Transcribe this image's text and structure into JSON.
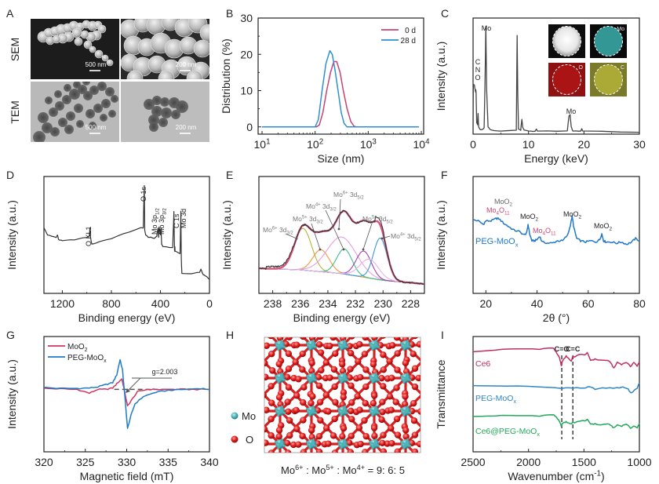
{
  "figure": {
    "panel_letters": [
      "A",
      "B",
      "C",
      "D",
      "E",
      "F",
      "G",
      "H",
      "I"
    ]
  },
  "panelA": {
    "row_labels": [
      "SEM",
      "TEM"
    ],
    "images": [
      {
        "row": "SEM",
        "scale_bar": "500 nm"
      },
      {
        "row": "SEM",
        "scale_bar": "200 nm"
      },
      {
        "row": "TEM",
        "scale_bar": "500 nm"
      },
      {
        "row": "TEM",
        "scale_bar": "200 nm"
      }
    ]
  },
  "panelH": {
    "legend": [
      {
        "label": "Mo",
        "color": "#4fb3b8"
      },
      {
        "label": "O",
        "color": "#e01b1b"
      }
    ],
    "caption": {
      "mo6": "Mo",
      "sup6": "6+",
      "mo5": " : Mo",
      "sup5": "5+",
      "mo4": " : Mo",
      "sup4": "4+",
      "ratio": " = 9: 6: 5"
    }
  },
  "chart_data": [
    {
      "id": "B",
      "type": "line",
      "title": "",
      "xlabel": "Size (nm)",
      "ylabel": "Distribution (%)",
      "xscale": "log",
      "xlim": [
        10,
        10000
      ],
      "ylim": [
        -2,
        30
      ],
      "xticks": [
        10,
        100,
        1000,
        10000
      ],
      "xtick_labels": [
        [
          "10",
          "1"
        ],
        [
          "10",
          "2"
        ],
        [
          "10",
          "3"
        ],
        [
          "10",
          "4"
        ]
      ],
      "yticks": [
        0,
        10,
        20,
        30
      ],
      "legend": "top-right",
      "series": [
        {
          "name": "0 d",
          "color": "#c8436f",
          "x": [
            10,
            105,
            120,
            140,
            165,
            195,
            225,
            255,
            295,
            340,
            400,
            470,
            540,
            600,
            9000
          ],
          "y": [
            0,
            0,
            0.5,
            4,
            10,
            15,
            18,
            18,
            15,
            10,
            5,
            1.5,
            0.2,
            0,
            0
          ]
        },
        {
          "name": "28 d",
          "color": "#2f8fd0",
          "x": [
            10,
            100,
            115,
            135,
            160,
            190,
            210,
            235,
            270,
            310,
            350,
            400,
            9000
          ],
          "y": [
            0,
            0,
            2,
            10,
            17.5,
            21,
            20,
            16,
            10,
            4,
            1,
            0,
            0
          ]
        }
      ]
    },
    {
      "id": "C",
      "type": "line",
      "title": "",
      "xlabel": "Energy (keV)",
      "ylabel": "Intensity (a.u.)",
      "xlim": [
        0,
        30
      ],
      "ylim": [
        0,
        100
      ],
      "xticks": [
        0,
        10,
        20,
        30
      ],
      "series": [
        {
          "name": "EDS",
          "color": "#444444",
          "x": [
            0,
            0.05,
            0.25,
            0.3,
            0.45,
            0.5,
            0.55,
            0.65,
            0.8,
            0.9,
            1.0,
            1.2,
            1.5,
            2.0,
            2.2,
            2.3,
            2.45,
            2.7,
            3.2,
            5,
            7.8,
            7.95,
            8.05,
            8.2,
            8.6,
            8.8,
            8.95,
            9.2,
            10,
            11.2,
            11.4,
            11.6,
            17,
            17.3,
            17.5,
            17.7,
            18,
            19.4,
            19.6,
            19.8,
            30
          ],
          "y": [
            0,
            45,
            44,
            42,
            38,
            40,
            36,
            10,
            8,
            18,
            6,
            4,
            3,
            5,
            60,
            98,
            40,
            6,
            3,
            2,
            3,
            90,
            40,
            4,
            3,
            13,
            6,
            3,
            2,
            2,
            4,
            2,
            2,
            16,
            17,
            6,
            2,
            2,
            4,
            2,
            1
          ]
        }
      ],
      "annotations": [
        {
          "text": "Mo",
          "x": 2.3
        },
        {
          "text": "C\nN\nO",
          "x": 0.4
        },
        {
          "text": "Mo",
          "x": 17.4
        }
      ],
      "inset_maps": [
        "HAADF",
        "Mo",
        "O",
        "C"
      ],
      "inset_colors": [
        "#f2f2f2",
        "#3ab0ae",
        "#b01515",
        "#b5b33a"
      ]
    },
    {
      "id": "D",
      "type": "line",
      "title": "",
      "xlabel": "Binding energy (eV)",
      "ylabel": "Intensity (a.u.)",
      "xlim": [
        1350,
        0
      ],
      "ylim": [
        0,
        100
      ],
      "xticks": [
        1200,
        800,
        400,
        0
      ],
      "series": [
        {
          "name": "XPS survey",
          "color": "#333333",
          "x": [
            1350,
            1320,
            1290,
            1250,
            1240,
            1230,
            1200,
            1100,
            1000,
            980,
            975,
            970,
            960,
            900,
            800,
            700,
            560,
            540,
            532,
            528,
            520,
            500,
            480,
            450,
            430,
            420,
            415,
            410,
            400,
            395,
            390,
            380,
            300,
            290,
            285,
            282,
            280,
            240,
            233,
            230,
            228,
            225,
            220,
            150,
            80,
            70,
            60,
            50,
            30,
            10,
            0
          ],
          "y": [
            56,
            50,
            49,
            48,
            50,
            46,
            45,
            46,
            48,
            49,
            56,
            48,
            42,
            44,
            47,
            51,
            56,
            56,
            92,
            54,
            50,
            48,
            48,
            47,
            49,
            56,
            48,
            57,
            50,
            56,
            42,
            40,
            39,
            70,
            36,
            40,
            36,
            34,
            70,
            30,
            24,
            17,
            17,
            17,
            18,
            21,
            18,
            16,
            15,
            13,
            12
          ]
        }
      ],
      "annotations": [
        {
          "text": "O KL1",
          "x": 975
        },
        {
          "text": "O 1s",
          "x": 531
        },
        {
          "text": "Mo 3p1/2",
          "x": 412
        },
        {
          "text": "Mo 3p3/2",
          "x": 396
        },
        {
          "text": "C 1s",
          "x": 285
        },
        {
          "text": "Mo 3d",
          "x": 232
        }
      ]
    },
    {
      "id": "E",
      "type": "line",
      "title": "",
      "xlabel": "Binding energy (eV)",
      "ylabel": "Intensity (a.u.)",
      "xlim": [
        239,
        227
      ],
      "ylim": [
        0,
        100
      ],
      "xticks": [
        238,
        236,
        234,
        232,
        230,
        228
      ],
      "baseline": {
        "x": [
          239,
          236,
          233,
          230,
          227
        ],
        "y": [
          18,
          16.5,
          13,
          6.5,
          3
        ]
      },
      "series": [
        {
          "name": "Measured",
          "color": "#333333",
          "role": "raw"
        },
        {
          "name": "Envelope fit",
          "color": "#d8557a",
          "role": "fit"
        },
        {
          "name": "Mo6+ 3d3/2",
          "color": "#b9b33c",
          "center": 235.8,
          "height": 40,
          "fwhm": 1.45
        },
        {
          "name": "Mo5+ 3d3/2",
          "color": "#f09a3e",
          "center": 234.5,
          "height": 21,
          "fwhm": 1.4
        },
        {
          "name": "Mo4+ 3d3/2",
          "color": "#e8a0e0",
          "center": 233.0,
          "height": 35,
          "fwhm": 2.5
        },
        {
          "name": "Mo6+ 3d5/2",
          "color": "#3cc08a",
          "center": 232.8,
          "height": 24,
          "fwhm": 1.3
        },
        {
          "name": "Mo5+ 3d5/2",
          "color": "#a040b0",
          "center": 231.4,
          "height": 25,
          "fwhm": 1.3
        },
        {
          "name": "Mo4+ 3d5/2",
          "color": "#3a9ad6",
          "center": 230.2,
          "height": 40,
          "fwhm": 1.15
        },
        {
          "name": "Extra",
          "color": "#e8b0e8",
          "center": 231.0,
          "height": 18,
          "fwhm": 1.6
        }
      ],
      "annotations": [
        {
          "text": "Mo6+ 3d3/2",
          "main": "Mo",
          "sup": "6+",
          "sub": "3/2",
          "points_to": 235.6
        },
        {
          "text": "Mo5+ 3d3/2",
          "main": "Mo",
          "sup": "5+",
          "sub": "3/2",
          "points_to": 234.5
        },
        {
          "text": "Mo4+ 3d3/2",
          "main": "Mo",
          "sup": "4+",
          "sub": "3/2",
          "points_to": 232.8
        },
        {
          "text": "Mo6+ 3d5/2",
          "main": "Mo",
          "sup": "6+",
          "sub": "5/2",
          "points_to": 233.0
        },
        {
          "text": "Mo5+ 3d5/2",
          "main": "Mo",
          "sup": "5+",
          "sub": "5/2",
          "points_to": 231.4
        },
        {
          "text": "Mo4+ 3d5/2",
          "main": "Mo",
          "sup": "4+",
          "sub": "5/2",
          "points_to": 230.2
        }
      ]
    },
    {
      "id": "F",
      "type": "line",
      "title": "",
      "xlabel": "2θ (°)",
      "ylabel": "Intensity (a.u.)",
      "xlim": [
        15,
        80
      ],
      "ylim": [
        0,
        100
      ],
      "xticks": [
        20,
        40,
        60,
        80
      ],
      "series": [
        {
          "name": "PEG-MoOx",
          "color": "#1f78c8",
          "x": [
            15,
            17,
            19,
            20,
            22,
            24,
            25,
            27,
            29,
            31,
            33,
            35,
            36,
            36.5,
            37.2,
            38,
            39,
            40,
            41,
            42,
            44,
            46,
            48,
            50,
            52,
            53,
            53.7,
            54.4,
            55.5,
            57,
            59,
            61,
            63,
            64.5,
            65.3,
            66,
            67,
            69,
            71,
            73,
            75,
            77,
            78.5,
            80
          ],
          "y": [
            63,
            62,
            59,
            62,
            62,
            64,
            64,
            60,
            57,
            54,
            53,
            50,
            52,
            59,
            50,
            45,
            45,
            46,
            49,
            44,
            43,
            43,
            45,
            45,
            50,
            58,
            66,
            56,
            47,
            45,
            44,
            45,
            44,
            46,
            51,
            45,
            44,
            44,
            43,
            44,
            42,
            44,
            47,
            45
          ]
        }
      ],
      "annotations": [
        {
          "text": "MoO2",
          "x": 24,
          "color": "#666666"
        },
        {
          "text": "Mo4O11",
          "x": 24,
          "color": "#c8436f"
        },
        {
          "text": "MoO2",
          "x": 36.5,
          "color": "#222222"
        },
        {
          "text": "Mo4O11",
          "x": 42,
          "color": "#c8436f"
        },
        {
          "text": "MoO2",
          "x": 53.7,
          "color": "#222222"
        },
        {
          "text": "MoO2",
          "x": 65.5,
          "color": "#222222"
        }
      ],
      "series_label": {
        "main": "PEG-MoO",
        "sub": "x"
      }
    },
    {
      "id": "G",
      "type": "line",
      "title": "",
      "xlabel": "Magnetic field (mT)",
      "ylabel": "Intensity (a.u.)",
      "xlim": [
        320,
        340
      ],
      "ylim": [
        -100,
        100
      ],
      "xticks": [
        320,
        325,
        330,
        335,
        340
      ],
      "legend": "top-left",
      "series": [
        {
          "name": "MoO2",
          "label_main": "MoO",
          "label_sub": "2",
          "color": "#d0365f",
          "x": [
            320,
            322,
            324,
            325.5,
            326.5,
            327.5,
            328.3,
            329,
            329.4,
            329.7,
            330.1,
            330.6,
            331.3,
            332.5,
            334,
            336,
            338,
            340
          ],
          "y": [
            2,
            1,
            0,
            -8,
            0,
            0,
            3,
            15,
            22,
            0,
            -35,
            -22,
            -5,
            0,
            0,
            0,
            0,
            0
          ]
        },
        {
          "name": "PEG-MoOx",
          "label_main": "PEG-MoO",
          "label_sub": "x",
          "color": "#1f7ac8",
          "x": [
            320,
            322,
            324,
            325.5,
            326.5,
            327.5,
            328.3,
            328.8,
            329.2,
            329.5,
            329.8,
            330.1,
            330.5,
            331,
            332,
            333.5,
            335,
            337,
            339,
            340
          ],
          "y": [
            4,
            2,
            2,
            3,
            5,
            10,
            14,
            30,
            62,
            40,
            -20,
            -82,
            -55,
            -30,
            -15,
            -6,
            -2,
            0,
            2,
            0
          ]
        }
      ],
      "annotations": [
        {
          "text": "g=2.003",
          "x": 329.8,
          "dashed_baseline": true
        }
      ]
    },
    {
      "id": "I",
      "type": "line",
      "title": "",
      "xlabel": "Wavenumber (cm⁻¹)",
      "xlabel_main": "Wavenumber (cm",
      "xlabel_sup": "-1",
      "xlabel_end": ")",
      "ylabel": "Transmittance",
      "xlim": [
        2500,
        1000
      ],
      "ylim": [
        0,
        100
      ],
      "xticks": [
        2500,
        2000,
        1500,
        1000
      ],
      "vlines": [
        {
          "x": 1700,
          "label": "C=O"
        },
        {
          "x": 1600,
          "label": "C=C"
        }
      ],
      "series": [
        {
          "name": "Ce6",
          "label_main": "Ce6",
          "label_sub": "",
          "color": "#c0305e",
          "x": [
            2500,
            2300,
            2100,
            1900,
            1780,
            1750,
            1720,
            1705,
            1690,
            1660,
            1640,
            1615,
            1600,
            1580,
            1540,
            1500,
            1470,
            1440,
            1400,
            1350,
            1300,
            1260,
            1230,
            1200,
            1160,
            1120,
            1080,
            1050,
            1020,
            1000
          ],
          "y": [
            88,
            90,
            91,
            91,
            92,
            88,
            82,
            75,
            80,
            84,
            82,
            79,
            84,
            83,
            86,
            85,
            87,
            80,
            81,
            80,
            80,
            78,
            72,
            78,
            76,
            78,
            74,
            78,
            74,
            79
          ]
        },
        {
          "name": "PEG-MoOx",
          "label_main": "PEG-MoO",
          "label_sub": "x",
          "color": "#2f86c8",
          "x": [
            2500,
            2200,
            1900,
            1700,
            1600,
            1500,
            1450,
            1400,
            1300,
            1200,
            1150,
            1100,
            1080,
            1050,
            1020,
            1000
          ],
          "y": [
            55,
            55,
            54,
            53,
            53,
            53,
            54,
            52,
            53,
            53,
            54,
            52,
            48,
            50,
            53,
            58
          ]
        },
        {
          "name": "Ce6@PEG-MoOx",
          "label_main": "Ce6@PEG-MoO",
          "label_sub": "x",
          "color": "#22a85a",
          "x": [
            2500,
            2300,
            2100,
            1900,
            1780,
            1750,
            1720,
            1705,
            1690,
            1660,
            1640,
            1615,
            1600,
            1580,
            1540,
            1500,
            1470,
            1440,
            1400,
            1350,
            1300,
            1260,
            1230,
            1200,
            1160,
            1120,
            1080,
            1050,
            1020,
            1000
          ],
          "y": [
            25,
            26,
            26,
            26,
            27,
            25,
            20,
            16,
            19,
            20,
            19,
            18,
            20,
            19,
            21,
            21,
            22,
            18,
            18,
            17,
            18,
            17,
            14,
            17,
            16,
            18,
            14,
            16,
            14,
            19
          ]
        }
      ]
    }
  ]
}
